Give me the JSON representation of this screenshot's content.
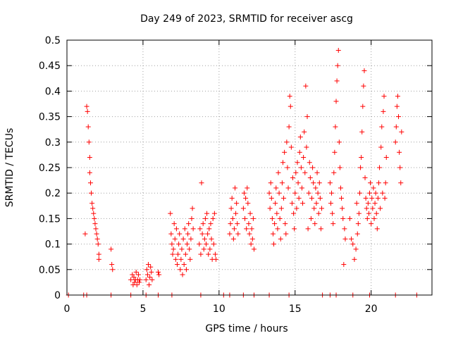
{
  "chart_data": {
    "type": "scatter",
    "title": "Day 249 of 2023, SRMTID for receiver ascg",
    "xlabel": "GPS time / hours",
    "ylabel": "SRMTID / TECUs",
    "xlim": [
      0,
      24
    ],
    "ylim": [
      0,
      0.5
    ],
    "x_ticks": [
      0,
      5,
      10,
      15,
      20
    ],
    "x_tick_labels": [
      "0",
      "5",
      "10",
      "15",
      "20"
    ],
    "y_ticks": [
      0,
      0.05,
      0.1,
      0.15,
      0.2,
      0.25,
      0.3,
      0.35,
      0.4,
      0.45,
      0.5
    ],
    "y_tick_labels": [
      "0",
      "0.05",
      "0.1",
      "0.15",
      "0.2",
      "0.25",
      "0.3",
      "0.35",
      "0.4",
      "0.45",
      "0.5"
    ],
    "grid": true,
    "marker": "+",
    "series_color": "#ff0000",
    "series": [
      {
        "name": "SRMTID",
        "points": [
          [
            0.1,
            0
          ],
          [
            1.1,
            0
          ],
          [
            1.3,
            0
          ],
          [
            2.9,
            0
          ],
          [
            4.2,
            0
          ],
          [
            5.2,
            0
          ],
          [
            6.0,
            0
          ],
          [
            6.9,
            0
          ],
          [
            8.8,
            0
          ],
          [
            10.3,
            0
          ],
          [
            10.7,
            0
          ],
          [
            11.6,
            0
          ],
          [
            12.3,
            0
          ],
          [
            13.3,
            0
          ],
          [
            14.6,
            0
          ],
          [
            16.8,
            0
          ],
          [
            17.3,
            0
          ],
          [
            17.7,
            0
          ],
          [
            18.8,
            0
          ],
          [
            19.9,
            0
          ],
          [
            21.6,
            0
          ],
          [
            23.0,
            0
          ],
          [
            1.2,
            0.12
          ],
          [
            1.3,
            0.37
          ],
          [
            1.35,
            0.36
          ],
          [
            1.4,
            0.33
          ],
          [
            1.45,
            0.3
          ],
          [
            1.5,
            0.27
          ],
          [
            1.5,
            0.24
          ],
          [
            1.55,
            0.22
          ],
          [
            1.6,
            0.2
          ],
          [
            1.65,
            0.18
          ],
          [
            1.7,
            0.17
          ],
          [
            1.75,
            0.16
          ],
          [
            1.8,
            0.15
          ],
          [
            1.85,
            0.14
          ],
          [
            1.9,
            0.13
          ],
          [
            1.95,
            0.12
          ],
          [
            2.0,
            0.11
          ],
          [
            2.05,
            0.1
          ],
          [
            2.1,
            0.08
          ],
          [
            2.1,
            0.07
          ],
          [
            2.9,
            0.09
          ],
          [
            2.95,
            0.06
          ],
          [
            3.0,
            0.05
          ],
          [
            4.2,
            0.03
          ],
          [
            4.3,
            0.04
          ],
          [
            4.35,
            0.02
          ],
          [
            4.4,
            0.035
          ],
          [
            4.45,
            0.025
          ],
          [
            4.5,
            0.03
          ],
          [
            4.55,
            0.045
          ],
          [
            4.6,
            0.02
          ],
          [
            4.65,
            0.03
          ],
          [
            4.7,
            0.04
          ],
          [
            4.75,
            0.025
          ],
          [
            4.8,
            0.03
          ],
          [
            5.2,
            0.03
          ],
          [
            5.25,
            0.05
          ],
          [
            5.3,
            0.04
          ],
          [
            5.35,
            0.06
          ],
          [
            5.4,
            0.02
          ],
          [
            5.45,
            0.035
          ],
          [
            5.5,
            0.055
          ],
          [
            5.55,
            0.045
          ],
          [
            5.6,
            0.03
          ],
          [
            6.0,
            0.045
          ],
          [
            6.05,
            0.04
          ],
          [
            6.8,
            0.16
          ],
          [
            6.85,
            0.12
          ],
          [
            6.9,
            0.1
          ],
          [
            6.95,
            0.08
          ],
          [
            7.0,
            0.09
          ],
          [
            7.05,
            0.14
          ],
          [
            7.1,
            0.11
          ],
          [
            7.15,
            0.07
          ],
          [
            7.2,
            0.13
          ],
          [
            7.25,
            0.06
          ],
          [
            7.3,
            0.08
          ],
          [
            7.35,
            0.1
          ],
          [
            7.4,
            0.12
          ],
          [
            7.45,
            0.05
          ],
          [
            7.5,
            0.07
          ],
          [
            7.55,
            0.09
          ],
          [
            7.6,
            0.04
          ],
          [
            7.65,
            0.11
          ],
          [
            7.7,
            0.06
          ],
          [
            7.75,
            0.13
          ],
          [
            7.8,
            0.08
          ],
          [
            7.85,
            0.05
          ],
          [
            7.9,
            0.1
          ],
          [
            7.95,
            0.12
          ],
          [
            8.0,
            0.14
          ],
          [
            8.05,
            0.09
          ],
          [
            8.1,
            0.07
          ],
          [
            8.15,
            0.11
          ],
          [
            8.2,
            0.15
          ],
          [
            8.25,
            0.17
          ],
          [
            8.3,
            0.13
          ],
          [
            8.7,
            0.1
          ],
          [
            8.75,
            0.13
          ],
          [
            8.8,
            0.08
          ],
          [
            8.85,
            0.22
          ],
          [
            8.9,
            0.12
          ],
          [
            8.95,
            0.14
          ],
          [
            9.0,
            0.09
          ],
          [
            9.05,
            0.11
          ],
          [
            9.1,
            0.15
          ],
          [
            9.15,
            0.1
          ],
          [
            9.2,
            0.16
          ],
          [
            9.25,
            0.12
          ],
          [
            9.3,
            0.08
          ],
          [
            9.35,
            0.13
          ],
          [
            9.4,
            0.09
          ],
          [
            9.45,
            0.14
          ],
          [
            9.5,
            0.11
          ],
          [
            9.55,
            0.07
          ],
          [
            9.6,
            0.15
          ],
          [
            9.65,
            0.1
          ],
          [
            9.7,
            0.16
          ],
          [
            9.75,
            0.08
          ],
          [
            9.8,
            0.07
          ],
          [
            10.7,
            0.12
          ],
          [
            10.75,
            0.14
          ],
          [
            10.8,
            0.17
          ],
          [
            10.85,
            0.19
          ],
          [
            10.9,
            0.15
          ],
          [
            10.95,
            0.11
          ],
          [
            11.0,
            0.13
          ],
          [
            11.05,
            0.21
          ],
          [
            11.1,
            0.16
          ],
          [
            11.15,
            0.18
          ],
          [
            11.2,
            0.14
          ],
          [
            11.25,
            0.12
          ],
          [
            11.6,
            0.17
          ],
          [
            11.65,
            0.2
          ],
          [
            11.7,
            0.15
          ],
          [
            11.75,
            0.19
          ],
          [
            11.8,
            0.13
          ],
          [
            11.85,
            0.21
          ],
          [
            11.9,
            0.18
          ],
          [
            11.95,
            0.14
          ],
          [
            12.0,
            0.12
          ],
          [
            12.05,
            0.16
          ],
          [
            12.1,
            0.1
          ],
          [
            12.15,
            0.13
          ],
          [
            12.2,
            0.11
          ],
          [
            12.25,
            0.15
          ],
          [
            12.3,
            0.09
          ],
          [
            13.3,
            0.2
          ],
          [
            13.35,
            0.17
          ],
          [
            13.4,
            0.22
          ],
          [
            13.45,
            0.19
          ],
          [
            13.5,
            0.15
          ],
          [
            13.55,
            0.12
          ],
          [
            13.6,
            0.1
          ],
          [
            13.65,
            0.14
          ],
          [
            13.7,
            0.18
          ],
          [
            13.75,
            0.21
          ],
          [
            13.8,
            0.16
          ],
          [
            13.85,
            0.13
          ],
          [
            13.9,
            0.24
          ],
          [
            13.95,
            0.2
          ],
          [
            14.0,
            0.15
          ],
          [
            14.05,
            0.11
          ],
          [
            14.1,
            0.17
          ],
          [
            14.15,
            0.22
          ],
          [
            14.2,
            0.26
          ],
          [
            14.25,
            0.19
          ],
          [
            14.3,
            0.28
          ],
          [
            14.35,
            0.14
          ],
          [
            14.4,
            0.12
          ],
          [
            14.45,
            0.3
          ],
          [
            14.5,
            0.25
          ],
          [
            14.55,
            0.21
          ],
          [
            14.6,
            0.33
          ],
          [
            14.65,
            0.39
          ],
          [
            14.7,
            0.37
          ],
          [
            14.75,
            0.29
          ],
          [
            14.8,
            0.18
          ],
          [
            14.85,
            0.23
          ],
          [
            14.9,
            0.16
          ],
          [
            14.95,
            0.13
          ],
          [
            15.0,
            0.2
          ],
          [
            15.05,
            0.24
          ],
          [
            15.1,
            0.17
          ],
          [
            15.15,
            0.26
          ],
          [
            15.2,
            0.22
          ],
          [
            15.25,
            0.19
          ],
          [
            15.3,
            0.28
          ],
          [
            15.35,
            0.31
          ],
          [
            15.4,
            0.25
          ],
          [
            15.45,
            0.21
          ],
          [
            15.5,
            0.18
          ],
          [
            15.55,
            0.27
          ],
          [
            15.6,
            0.32
          ],
          [
            15.65,
            0.24
          ],
          [
            15.7,
            0.41
          ],
          [
            15.75,
            0.29
          ],
          [
            15.8,
            0.35
          ],
          [
            15.85,
            0.13
          ],
          [
            15.9,
            0.2
          ],
          [
            15.95,
            0.26
          ],
          [
            16.0,
            0.23
          ],
          [
            16.05,
            0.15
          ],
          [
            16.1,
            0.19
          ],
          [
            16.15,
            0.25
          ],
          [
            16.2,
            0.22
          ],
          [
            16.25,
            0.17
          ],
          [
            16.3,
            0.14
          ],
          [
            16.35,
            0.21
          ],
          [
            16.4,
            0.18
          ],
          [
            16.45,
            0.24
          ],
          [
            16.5,
            0.2
          ],
          [
            16.55,
            0.16
          ],
          [
            16.6,
            0.22
          ],
          [
            16.65,
            0.19
          ],
          [
            16.7,
            0.13
          ],
          [
            16.75,
            0.17
          ],
          [
            17.3,
            0.22
          ],
          [
            17.35,
            0.18
          ],
          [
            17.4,
            0.2
          ],
          [
            17.45,
            0.16
          ],
          [
            17.5,
            0.14
          ],
          [
            17.55,
            0.24
          ],
          [
            17.6,
            0.28
          ],
          [
            17.65,
            0.33
          ],
          [
            17.7,
            0.38
          ],
          [
            17.75,
            0.42
          ],
          [
            17.8,
            0.45
          ],
          [
            17.85,
            0.48
          ],
          [
            17.9,
            0.3
          ],
          [
            17.95,
            0.25
          ],
          [
            18.0,
            0.21
          ],
          [
            18.05,
            0.19
          ],
          [
            18.1,
            0.17
          ],
          [
            18.15,
            0.15
          ],
          [
            18.2,
            0.06
          ],
          [
            18.25,
            0.13
          ],
          [
            18.3,
            0.11
          ],
          [
            18.6,
            0.15
          ],
          [
            18.7,
            0.11
          ],
          [
            18.8,
            0.1
          ],
          [
            18.9,
            0.07
          ],
          [
            19.0,
            0.09
          ],
          [
            19.05,
            0.18
          ],
          [
            19.1,
            0.12
          ],
          [
            19.15,
            0.14
          ],
          [
            19.2,
            0.16
          ],
          [
            19.25,
            0.2
          ],
          [
            19.3,
            0.25
          ],
          [
            19.35,
            0.27
          ],
          [
            19.4,
            0.32
          ],
          [
            19.45,
            0.37
          ],
          [
            19.5,
            0.41
          ],
          [
            19.55,
            0.44
          ],
          [
            19.6,
            0.23
          ],
          [
            19.65,
            0.19
          ],
          [
            19.7,
            0.17
          ],
          [
            19.75,
            0.15
          ],
          [
            19.8,
            0.18
          ],
          [
            19.85,
            0.16
          ],
          [
            19.9,
            0.2
          ],
          [
            19.95,
            0.22
          ],
          [
            20.0,
            0.14
          ],
          [
            20.05,
            0.19
          ],
          [
            20.1,
            0.17
          ],
          [
            20.15,
            0.21
          ],
          [
            20.2,
            0.15
          ],
          [
            20.25,
            0.18
          ],
          [
            20.3,
            0.2
          ],
          [
            20.35,
            0.16
          ],
          [
            20.4,
            0.13
          ],
          [
            20.45,
            0.19
          ],
          [
            20.5,
            0.22
          ],
          [
            20.55,
            0.25
          ],
          [
            20.6,
            0.17
          ],
          [
            20.65,
            0.29
          ],
          [
            20.7,
            0.33
          ],
          [
            20.75,
            0.2
          ],
          [
            20.8,
            0.36
          ],
          [
            20.85,
            0.39
          ],
          [
            20.9,
            0.19
          ],
          [
            20.95,
            0.22
          ],
          [
            21.0,
            0.27
          ],
          [
            21.6,
            0.3
          ],
          [
            21.65,
            0.33
          ],
          [
            21.7,
            0.37
          ],
          [
            21.75,
            0.39
          ],
          [
            21.8,
            0.35
          ],
          [
            21.85,
            0.28
          ],
          [
            21.9,
            0.25
          ],
          [
            21.95,
            0.22
          ],
          [
            22.0,
            0.32
          ]
        ]
      }
    ]
  }
}
